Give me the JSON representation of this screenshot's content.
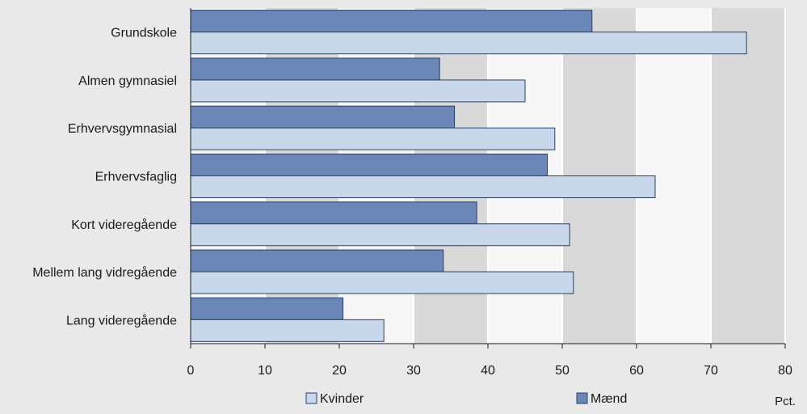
{
  "chart_data": {
    "type": "bar",
    "orientation": "horizontal",
    "categories": [
      "Grundskole",
      "Almen gymnasiel",
      "Erhvervsgymnasial",
      "Erhvervsfaglig",
      "Kort videregående",
      "Mellem lang vidregående",
      "Lang videregående"
    ],
    "series": [
      {
        "name": "Mænd",
        "values": [
          54,
          33.5,
          35.5,
          48,
          38.5,
          34,
          20.5
        ]
      },
      {
        "name": "Kvinder",
        "values": [
          74.8,
          45,
          49,
          62.5,
          51,
          51.5,
          26
        ]
      }
    ],
    "xlim": [
      0,
      80
    ],
    "x_ticks": [
      0,
      10,
      20,
      30,
      40,
      50,
      60,
      70,
      80
    ],
    "unit_label": "Pct.",
    "grid": true,
    "legend": [
      "Kvinder",
      "Mænd"
    ],
    "legend_position": "bottom",
    "colors": {
      "Mænd": "#6a87b8",
      "Kvinder": "#c9d7eb",
      "bar_stroke": "#2b3f66",
      "plot_band": "#d9d9d9",
      "grid": "#ffffff"
    }
  }
}
